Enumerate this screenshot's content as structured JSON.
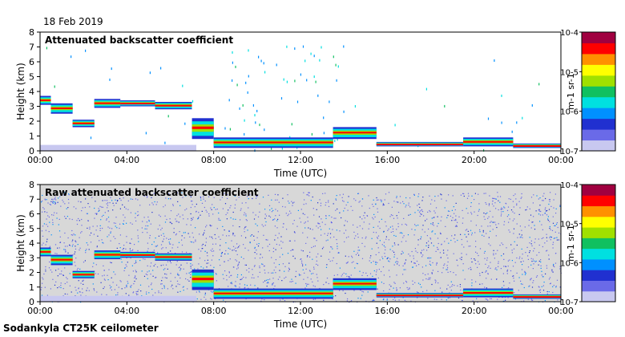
{
  "date_label": "18 Feb 2019",
  "footer_label": "Sodankyla CT25K ceilometer",
  "chart_data": [
    {
      "type": "heatmap",
      "title": "Attenuated backscatter coefficient",
      "xlabel": "Time (UTC)",
      "ylabel": "Height (km)",
      "x_ticks": [
        "00:00",
        "04:00",
        "08:00",
        "12:00",
        "16:00",
        "20:00",
        "00:00"
      ],
      "xlim_hours": [
        0,
        24
      ],
      "y_ticks": [
        0,
        1,
        2,
        3,
        4,
        5,
        6,
        7,
        8
      ],
      "ylim": [
        0,
        8
      ],
      "colorbar": {
        "scale": "log",
        "range": [
          1e-07,
          0.0001
        ],
        "tick_labels": [
          "10-7",
          "10-6",
          "10-5",
          "10-4"
        ],
        "unit_label": "m-1 sr-1",
        "colors": [
          "#ffffff",
          "#c8c8f0",
          "#6a6ae8",
          "#2030d0",
          "#0090ff",
          "#00e0e0",
          "#10c060",
          "#a0e000",
          "#ffff00",
          "#ff9000",
          "#ff0000",
          "#a00040"
        ]
      },
      "background": "#ffffff",
      "noise": "sparse",
      "layers": [
        {
          "start": 0.0,
          "end": 0.5,
          "top": 3.7,
          "base": 3.1
        },
        {
          "start": 0.5,
          "end": 1.5,
          "top": 3.2,
          "base": 2.5
        },
        {
          "start": 1.5,
          "end": 2.5,
          "top": 2.1,
          "base": 1.6
        },
        {
          "start": 2.5,
          "end": 3.7,
          "top": 3.5,
          "base": 2.9
        },
        {
          "start": 3.7,
          "end": 5.3,
          "top": 3.4,
          "base": 3.0
        },
        {
          "start": 5.3,
          "end": 7.0,
          "top": 3.3,
          "base": 2.8
        },
        {
          "start": 7.0,
          "end": 8.0,
          "top": 2.2,
          "base": 0.8
        },
        {
          "start": 8.0,
          "end": 13.5,
          "top": 0.9,
          "base": 0.2
        },
        {
          "start": 13.5,
          "end": 15.5,
          "top": 1.6,
          "base": 0.8
        },
        {
          "start": 15.5,
          "end": 19.5,
          "top": 0.6,
          "base": 0.3
        },
        {
          "start": 19.5,
          "end": 21.8,
          "top": 0.9,
          "base": 0.3
        },
        {
          "start": 21.8,
          "end": 24.0,
          "top": 0.5,
          "base": 0.2
        }
      ]
    },
    {
      "type": "heatmap",
      "title": "Raw attenuated backscatter coefficient",
      "xlabel": "Time (UTC)",
      "ylabel": "Height (km)",
      "x_ticks": [
        "00:00",
        "04:00",
        "08:00",
        "12:00",
        "16:00",
        "20:00",
        "00:00"
      ],
      "xlim_hours": [
        0,
        24
      ],
      "y_ticks": [
        0,
        1,
        2,
        3,
        4,
        5,
        6,
        7,
        8
      ],
      "ylim": [
        0,
        8
      ],
      "colorbar": {
        "scale": "log",
        "range": [
          1e-07,
          0.0001
        ],
        "tick_labels": [
          "10-7",
          "10-6",
          "10-5",
          "10-4"
        ],
        "unit_label": "m-1 sr-1",
        "colors": [
          "#ffffff",
          "#c8c8f0",
          "#6a6ae8",
          "#2030d0",
          "#0090ff",
          "#00e0e0",
          "#10c060",
          "#a0e000",
          "#ffff00",
          "#ff9000",
          "#ff0000",
          "#a00040"
        ]
      },
      "background": "#d8d8d8",
      "noise": "dense",
      "layers": [
        {
          "start": 0.0,
          "end": 0.5,
          "top": 3.7,
          "base": 3.1
        },
        {
          "start": 0.5,
          "end": 1.5,
          "top": 3.2,
          "base": 2.5
        },
        {
          "start": 1.5,
          "end": 2.5,
          "top": 2.1,
          "base": 1.6
        },
        {
          "start": 2.5,
          "end": 3.7,
          "top": 3.5,
          "base": 2.9
        },
        {
          "start": 3.7,
          "end": 5.3,
          "top": 3.4,
          "base": 3.0
        },
        {
          "start": 5.3,
          "end": 7.0,
          "top": 3.3,
          "base": 2.8
        },
        {
          "start": 7.0,
          "end": 8.0,
          "top": 2.2,
          "base": 0.8
        },
        {
          "start": 8.0,
          "end": 13.5,
          "top": 0.9,
          "base": 0.2
        },
        {
          "start": 13.5,
          "end": 15.5,
          "top": 1.6,
          "base": 0.8
        },
        {
          "start": 15.5,
          "end": 19.5,
          "top": 0.6,
          "base": 0.3
        },
        {
          "start": 19.5,
          "end": 21.8,
          "top": 0.9,
          "base": 0.3
        },
        {
          "start": 21.8,
          "end": 24.0,
          "top": 0.5,
          "base": 0.2
        }
      ]
    }
  ]
}
